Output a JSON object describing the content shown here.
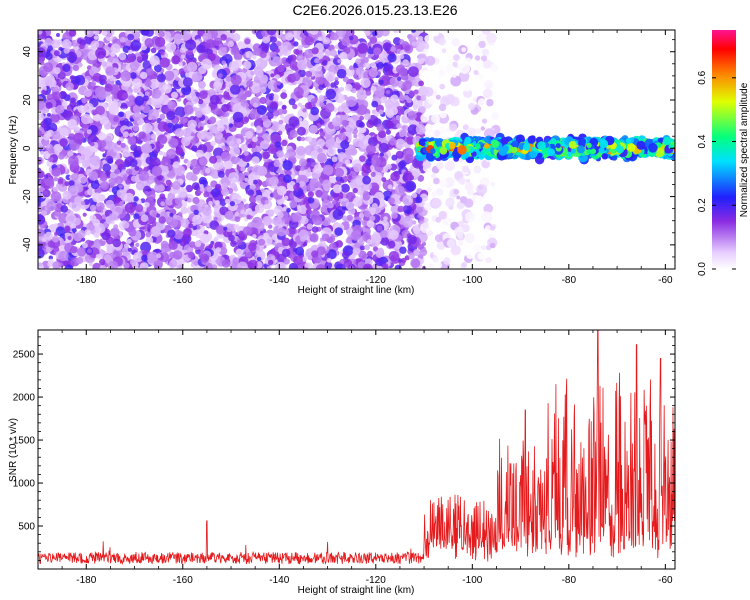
{
  "title": "C2E6.2026.015.23.13.E26",
  "chart_data": [
    {
      "type": "heatmap",
      "title": "C2E6.2026.015.23.13.E26",
      "xlabel": "Height of straight line (km)",
      "ylabel": "Frequency (Hz)",
      "xlim": [
        -190,
        -58
      ],
      "ylim": [
        -50,
        49
      ],
      "xticks": [
        -180,
        -160,
        -140,
        -120,
        -100,
        -80,
        -60
      ],
      "yticks": [
        -40,
        -20,
        0,
        20,
        40
      ],
      "regions": [
        {
          "name": "noise",
          "x_range": [
            -190,
            -110
          ],
          "y_range": [
            -50,
            49
          ],
          "value_range": [
            0.05,
            0.2
          ]
        },
        {
          "name": "sparse-noise",
          "x_range": [
            -110,
            -95
          ],
          "y_range": [
            -50,
            49
          ],
          "value_range": [
            0.0,
            0.08
          ]
        },
        {
          "name": "signal-band",
          "x_range": [
            -111,
            -58
          ],
          "y_center": 0,
          "y_halfwidth": 5,
          "value_range": [
            0.2,
            0.7
          ]
        }
      ],
      "colorbar": {
        "label": "Normalized spectral amplitude",
        "range": [
          0.0,
          0.75
        ],
        "ticks": [
          "0.0",
          "0.2",
          "0.4",
          "0.6"
        ]
      }
    },
    {
      "type": "line",
      "xlabel": "Height of straight line (km)",
      "ylabel": "SNR (10 * v/v)",
      "xlim": [
        -190,
        -58
      ],
      "ylim": [
        0,
        2780
      ],
      "xticks": [
        -180,
        -160,
        -140,
        -120,
        -100,
        -80,
        -60
      ],
      "yticks": [
        500,
        1000,
        1500,
        2000,
        2500
      ],
      "color": "#e41a1c",
      "series_envelope": [
        {
          "x_range": [
            -190,
            -110
          ],
          "base": 150,
          "max": 560
        },
        {
          "x_range": [
            -110,
            -95
          ],
          "base": 250,
          "max": 1050
        },
        {
          "x_range": [
            -95,
            -85
          ],
          "base": 350,
          "max": 1850
        },
        {
          "x_range": [
            -85,
            -58
          ],
          "base": 300,
          "max": 2780
        }
      ],
      "notable_peaks": [
        {
          "x": -155,
          "y": 560
        },
        {
          "x": -89,
          "y": 1850
        },
        {
          "x": -74,
          "y": 2780
        },
        {
          "x": -66,
          "y": 2610
        },
        {
          "x": -61,
          "y": 2450
        }
      ]
    }
  ]
}
